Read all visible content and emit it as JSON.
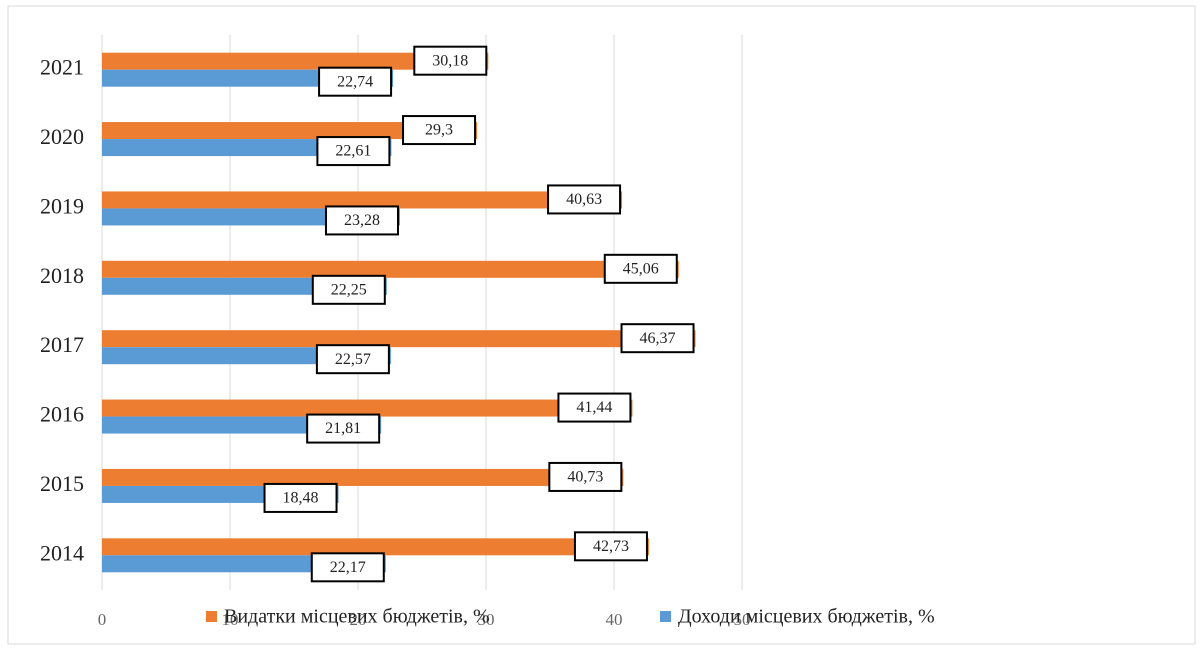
{
  "chart_data": {
    "type": "bar",
    "orientation": "horizontal",
    "categories": [
      "2014",
      "2015",
      "2016",
      "2017",
      "2018",
      "2019",
      "2020",
      "2021"
    ],
    "series": [
      {
        "name": "Видатки місцевих бюджетів, %",
        "color": "#ed7d31",
        "values": [
          42.73,
          40.73,
          41.44,
          46.37,
          45.06,
          40.63,
          29.3,
          30.18
        ],
        "value_labels": [
          "42,73",
          "40,73",
          "41,44",
          "46,37",
          "45,06",
          "40,63",
          "29,3",
          "30,18"
        ]
      },
      {
        "name": "Доходи місцевих бюджетів, %",
        "color": "#5b9bd5",
        "values": [
          22.17,
          18.48,
          21.81,
          22.57,
          22.25,
          23.28,
          22.61,
          22.74
        ],
        "value_labels": [
          "22,17",
          "18,48",
          "21,81",
          "22,57",
          "22,25",
          "23,28",
          "22,61",
          "22,74"
        ]
      }
    ],
    "xlim": [
      0,
      50
    ],
    "xticks": [
      0,
      10,
      20,
      30,
      40,
      50
    ],
    "grid": true
  }
}
